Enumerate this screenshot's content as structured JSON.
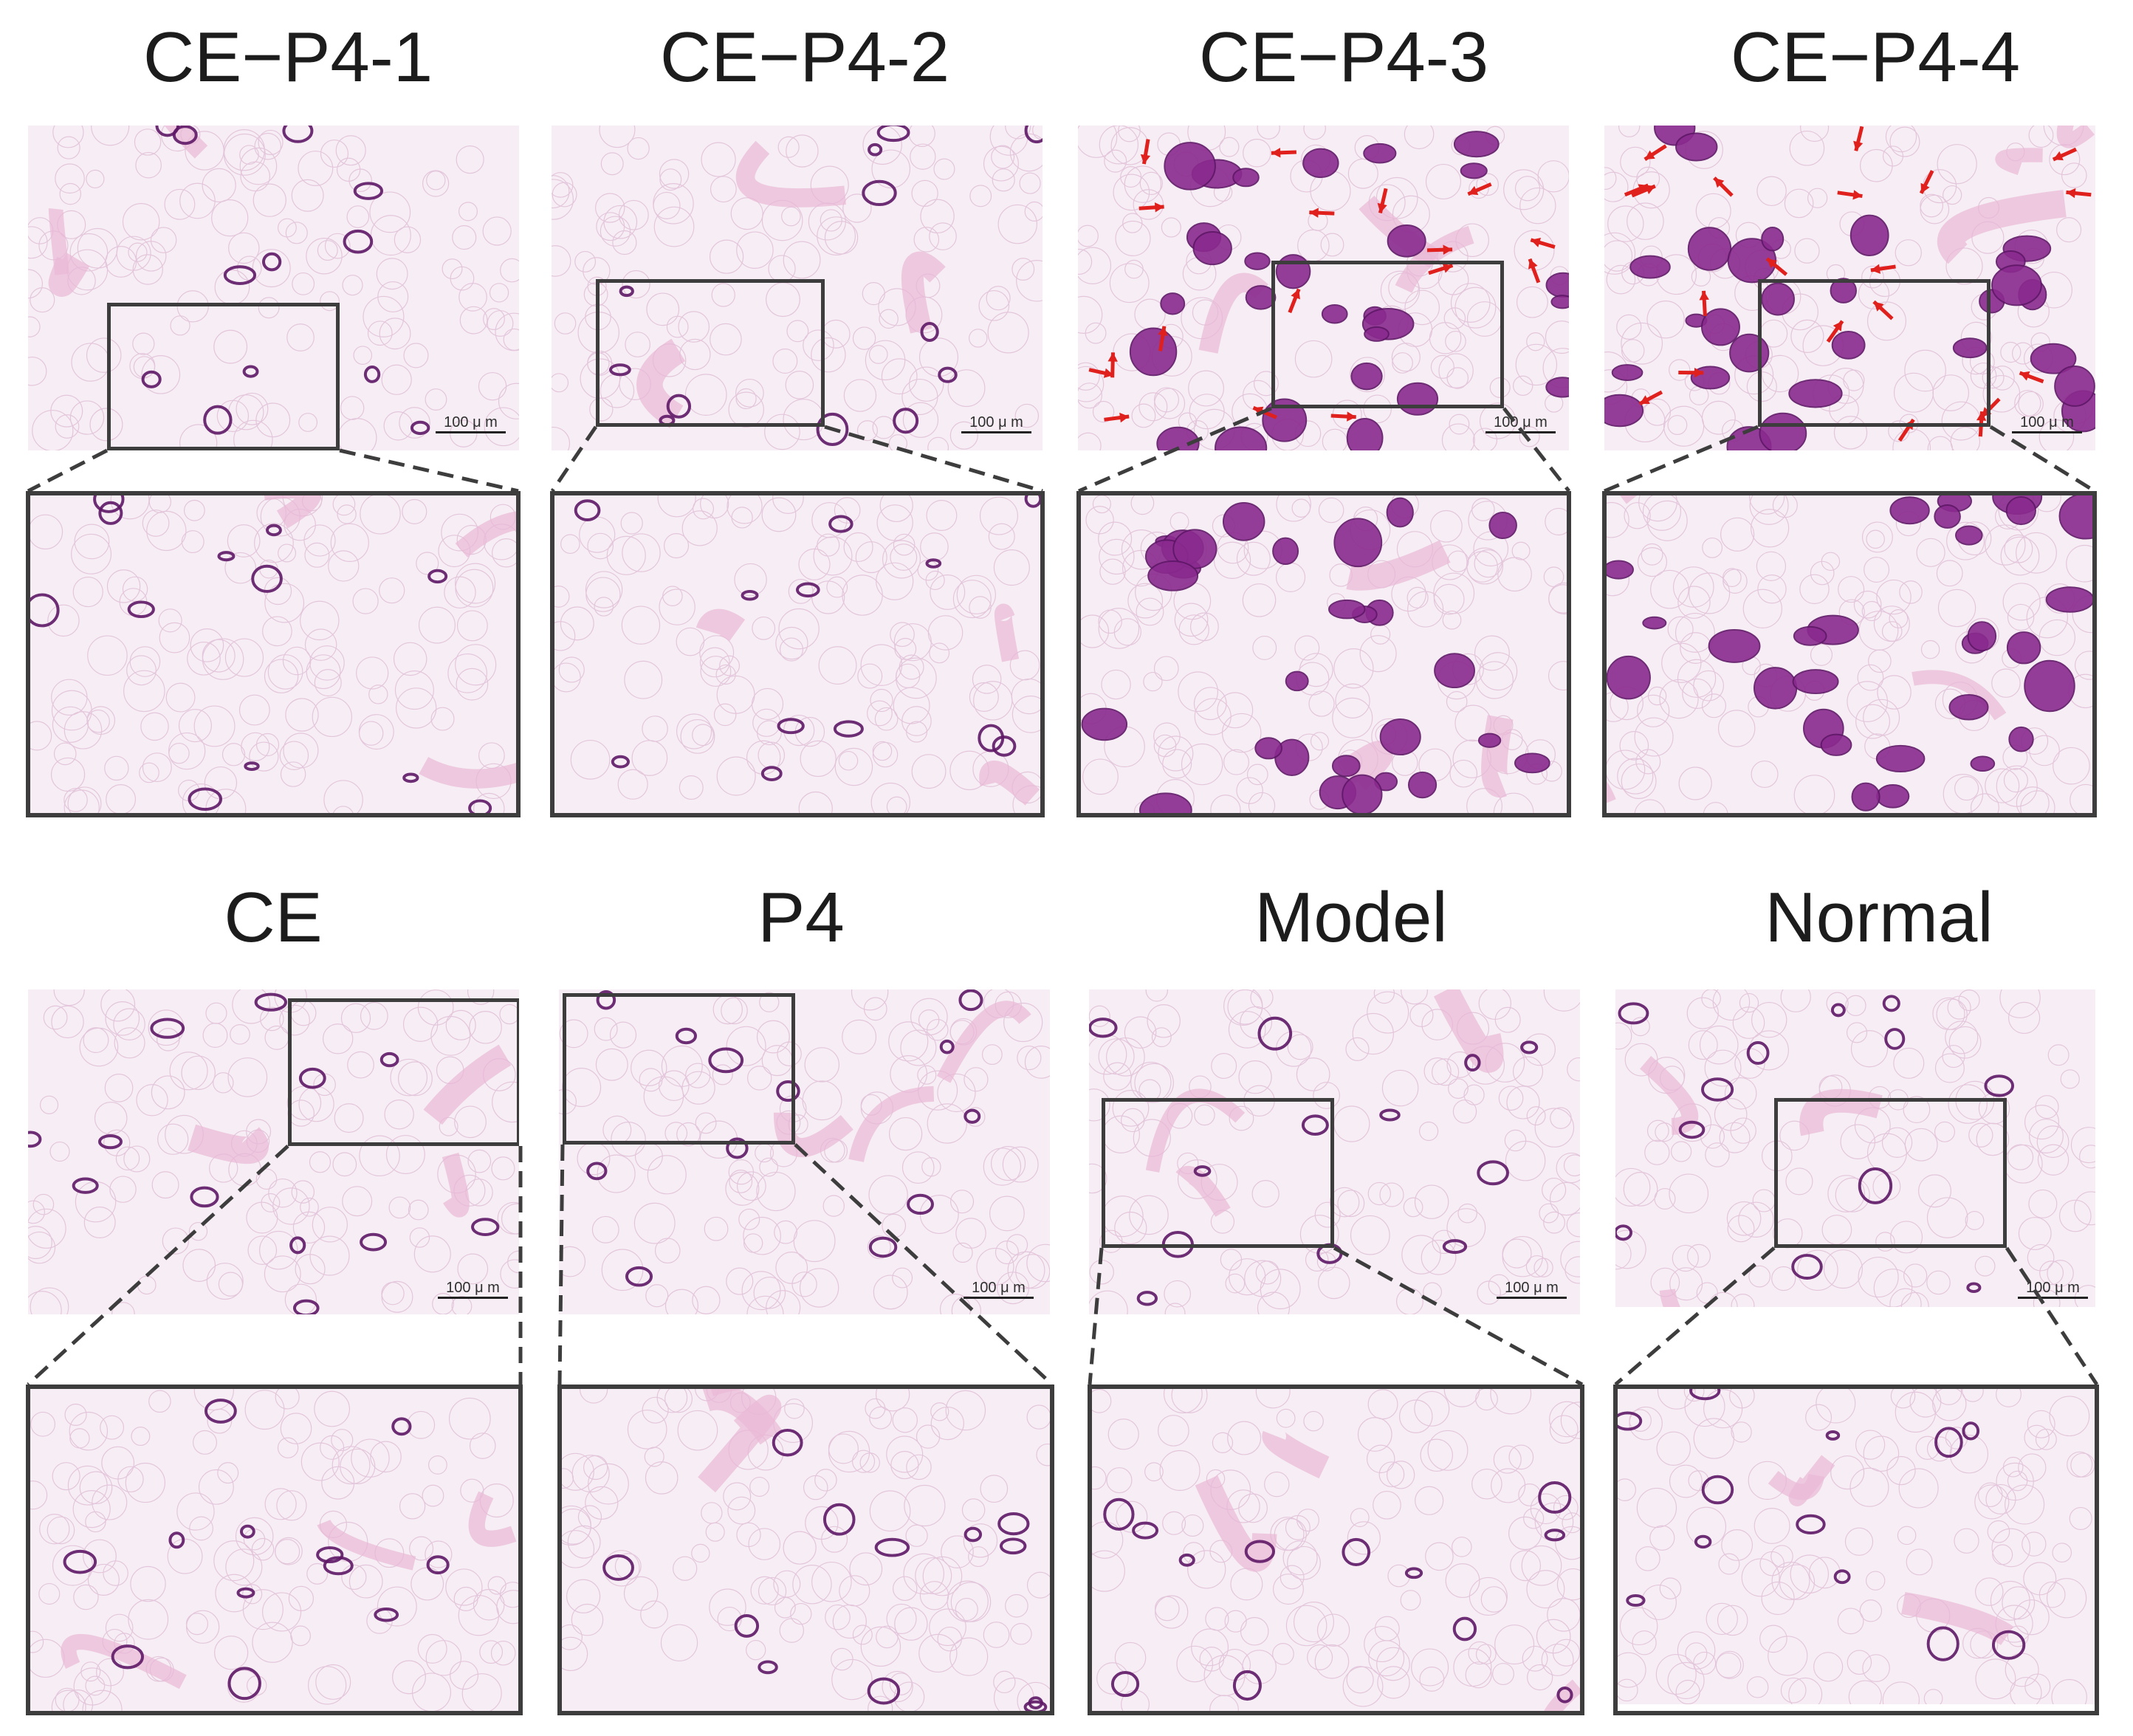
{
  "figure": {
    "panels": [
      {
        "title": "CE−P4-1",
        "scale_label": "100 μ m",
        "arrows": 0
      },
      {
        "title": "CE−P4-2",
        "scale_label": "100 μ m",
        "arrows": 0
      },
      {
        "title": "CE−P4-3",
        "scale_label": "100 μ m",
        "arrows": 17
      },
      {
        "title": "CE−P4-4",
        "scale_label": "100 μ m",
        "arrows": 20
      },
      {
        "title": "CE",
        "scale_label": "100 μ m",
        "arrows": 0
      },
      {
        "title": "P4",
        "scale_label": "100 μ m",
        "arrows": 0
      },
      {
        "title": "Model",
        "scale_label": "100 μ m",
        "arrows": 0
      },
      {
        "title": "Normal",
        "scale_label": "100 μ m",
        "arrows": 0
      }
    ],
    "colors": {
      "background_tissue": "#f6eef4",
      "stroma": "#e9b8d6",
      "gland": "#8a2a8f",
      "gland_dark": "#5e1766",
      "arrow": "#e0201c",
      "frame": "#3d3d3d"
    }
  }
}
